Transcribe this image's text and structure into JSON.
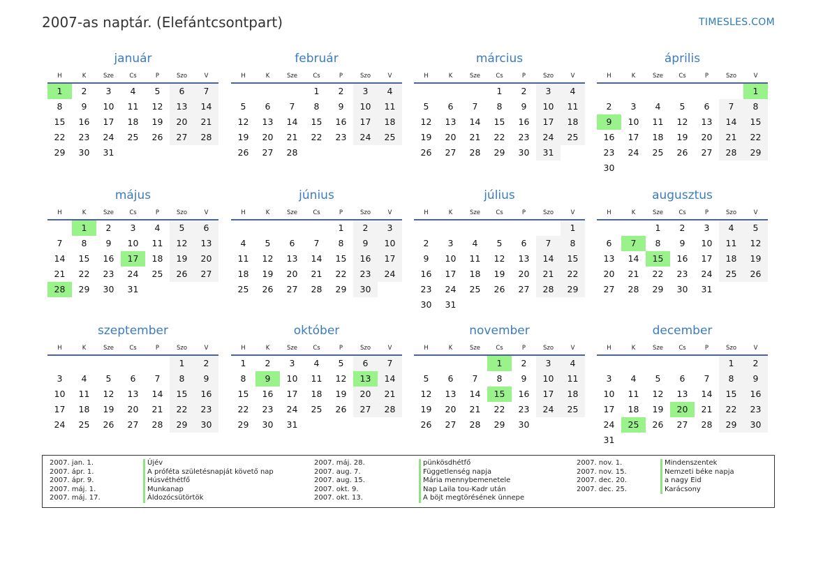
{
  "title": "2007-as naptár. (Elefántcsontpart)",
  "brand": "TIMESLES.COM",
  "year": 2007,
  "weekdays": [
    "H",
    "K",
    "Sze",
    "Cs",
    "P",
    "Szo",
    "V"
  ],
  "months": [
    "január",
    "február",
    "március",
    "április",
    "május",
    "június",
    "július",
    "augusztus",
    "szeptember",
    "október",
    "november",
    "december"
  ],
  "colors": {
    "holiday": "#9af28b",
    "weekend": "#f3f3f3",
    "accent": "#3b7cbf",
    "rule": "#4a6491"
  },
  "holidays": [
    {
      "month": 1,
      "day": 1,
      "date": "2007. jan. 1.",
      "name": "Újév"
    },
    {
      "month": 4,
      "day": 1,
      "date": "2007. ápr. 1.",
      "name": "A próféta születésnapját követő nap"
    },
    {
      "month": 4,
      "day": 9,
      "date": "2007. ápr. 9.",
      "name": "Húsvéthétfő"
    },
    {
      "month": 5,
      "day": 1,
      "date": "2007. máj. 1.",
      "name": "Munkanap"
    },
    {
      "month": 5,
      "day": 17,
      "date": "2007. máj. 17.",
      "name": "Áldozócsütörtök"
    },
    {
      "month": 5,
      "day": 28,
      "date": "2007. máj. 28.",
      "name": "pünkösdhétfő"
    },
    {
      "month": 8,
      "day": 7,
      "date": "2007. aug. 7.",
      "name": "Függetlenség napja"
    },
    {
      "month": 8,
      "day": 15,
      "date": "2007. aug. 15.",
      "name": "Mária mennybemenetele"
    },
    {
      "month": 10,
      "day": 9,
      "date": "2007. okt. 9.",
      "name": "Nap Laila tou-Kadr után"
    },
    {
      "month": 10,
      "day": 13,
      "date": "2007. okt. 13.",
      "name": "A böjt megtörésének ünnepe"
    },
    {
      "month": 11,
      "day": 1,
      "date": "2007. nov. 1.",
      "name": "Mindenszentek"
    },
    {
      "month": 11,
      "day": 15,
      "date": "2007. nov. 15.",
      "name": "Nemzeti béke napja"
    },
    {
      "month": 12,
      "day": 20,
      "date": "2007. dec. 20.",
      "name": "a nagy Eid"
    },
    {
      "month": 12,
      "day": 25,
      "date": "2007. dec. 25.",
      "name": "Karácsony"
    }
  ]
}
